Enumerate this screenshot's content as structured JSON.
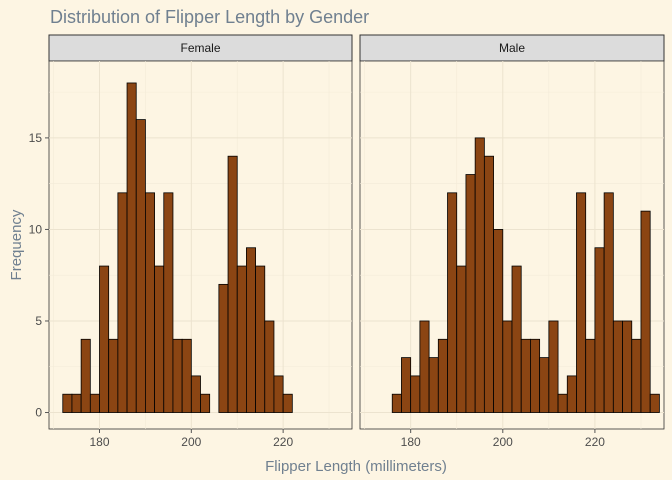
{
  "chart_data": {
    "type": "bar",
    "title": "Distribution of Flipper Length by Gender",
    "xlabel": "Flipper Length (millimeters)",
    "ylabel": "Frequency",
    "xlim": [
      169,
      235
    ],
    "ylim": [
      -0.9,
      19.2
    ],
    "x_ticks": [
      180,
      200,
      220
    ],
    "y_ticks": [
      0,
      5,
      10,
      15
    ],
    "bin_width": 2,
    "bin_start": 172,
    "colors": {
      "bar_fill": "#8b4513",
      "bar_outline": "#000000",
      "title": "#708090",
      "strip": "#dcdcdc"
    },
    "grid": true,
    "facets": [
      {
        "label": "Female",
        "values": [
          1,
          1,
          4,
          1,
          8,
          4,
          12,
          18,
          16,
          12,
          8,
          12,
          4,
          4,
          2,
          1,
          0,
          7,
          14,
          8,
          9,
          8,
          5,
          2,
          1,
          0,
          0,
          0,
          0,
          0,
          0
        ]
      },
      {
        "label": "Male",
        "values": [
          0,
          0,
          1,
          3,
          2,
          5,
          3,
          4,
          12,
          8,
          13,
          15,
          14,
          10,
          5,
          8,
          4,
          4,
          3,
          5,
          1,
          2,
          12,
          4,
          9,
          12,
          5,
          5,
          4,
          11,
          1
        ]
      }
    ]
  }
}
